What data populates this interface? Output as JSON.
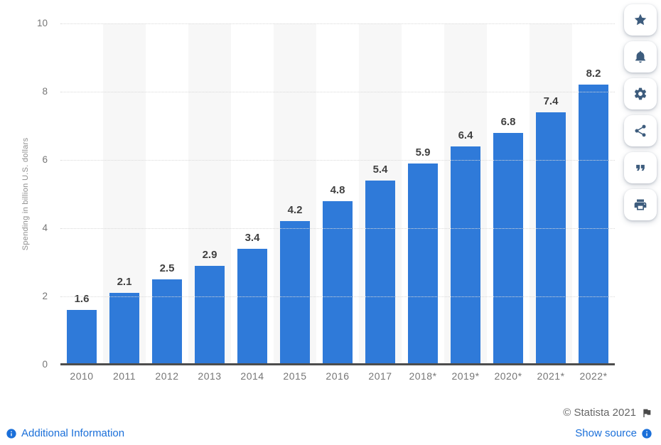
{
  "chart_data": {
    "type": "bar",
    "categories": [
      "2010",
      "2011",
      "2012",
      "2013",
      "2014",
      "2015",
      "2016",
      "2017",
      "2018*",
      "2019*",
      "2020*",
      "2021*",
      "2022*"
    ],
    "values": [
      1.6,
      2.1,
      2.5,
      2.9,
      3.4,
      4.2,
      4.8,
      5.4,
      5.9,
      6.4,
      6.8,
      7.4,
      8.2
    ],
    "title": "",
    "xlabel": "",
    "ylabel": "Spending in billion U.S. dollars",
    "ylim": [
      0,
      10
    ],
    "yticks": [
      0,
      2,
      4,
      6,
      8,
      10
    ],
    "grid": "horizontal-dotted",
    "legend": "none",
    "plot_bands": "alternating light gray on odd categories",
    "value_labels": "above each bar, one decimal"
  },
  "toolbar": {
    "buttons": [
      {
        "icon": "star-icon"
      },
      {
        "icon": "bell-icon"
      },
      {
        "icon": "gear-icon"
      },
      {
        "icon": "share-icon"
      },
      {
        "icon": "quote-icon"
      },
      {
        "icon": "print-icon"
      }
    ]
  },
  "footer": {
    "copyright": "© Statista 2021",
    "additional_information": "Additional Information",
    "show_source": "Show source"
  },
  "colors": {
    "bar": "#2f7ad9",
    "plot_band": "#f7f7f7",
    "gridline": "#d9d9d9",
    "axis_line": "#4d4d4d",
    "tick_label": "#767676",
    "value_label": "#404040",
    "y_title": "#8f8f8f",
    "toolbar_icon": "#3d5c7d",
    "link": "#1a6fd9",
    "copyright_text": "#666666"
  }
}
